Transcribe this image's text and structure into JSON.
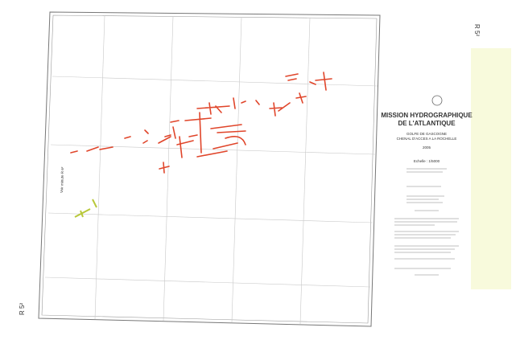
{
  "sheet": {
    "top": "R 5²",
    "bottom": "R 5²"
  },
  "title": {
    "line1": "MISSION HYDROGRAPHIQUE",
    "line2": "DE L'ATLANTIQUE"
  },
  "area": {
    "region": "GOLFE DE GASCOGNE",
    "channel": "CHENAL D'ACCES A LA ROCHELLE"
  },
  "year": "2005",
  "scale": "Echelle : 1/5000",
  "side_note": "Voir minute R 6²"
}
